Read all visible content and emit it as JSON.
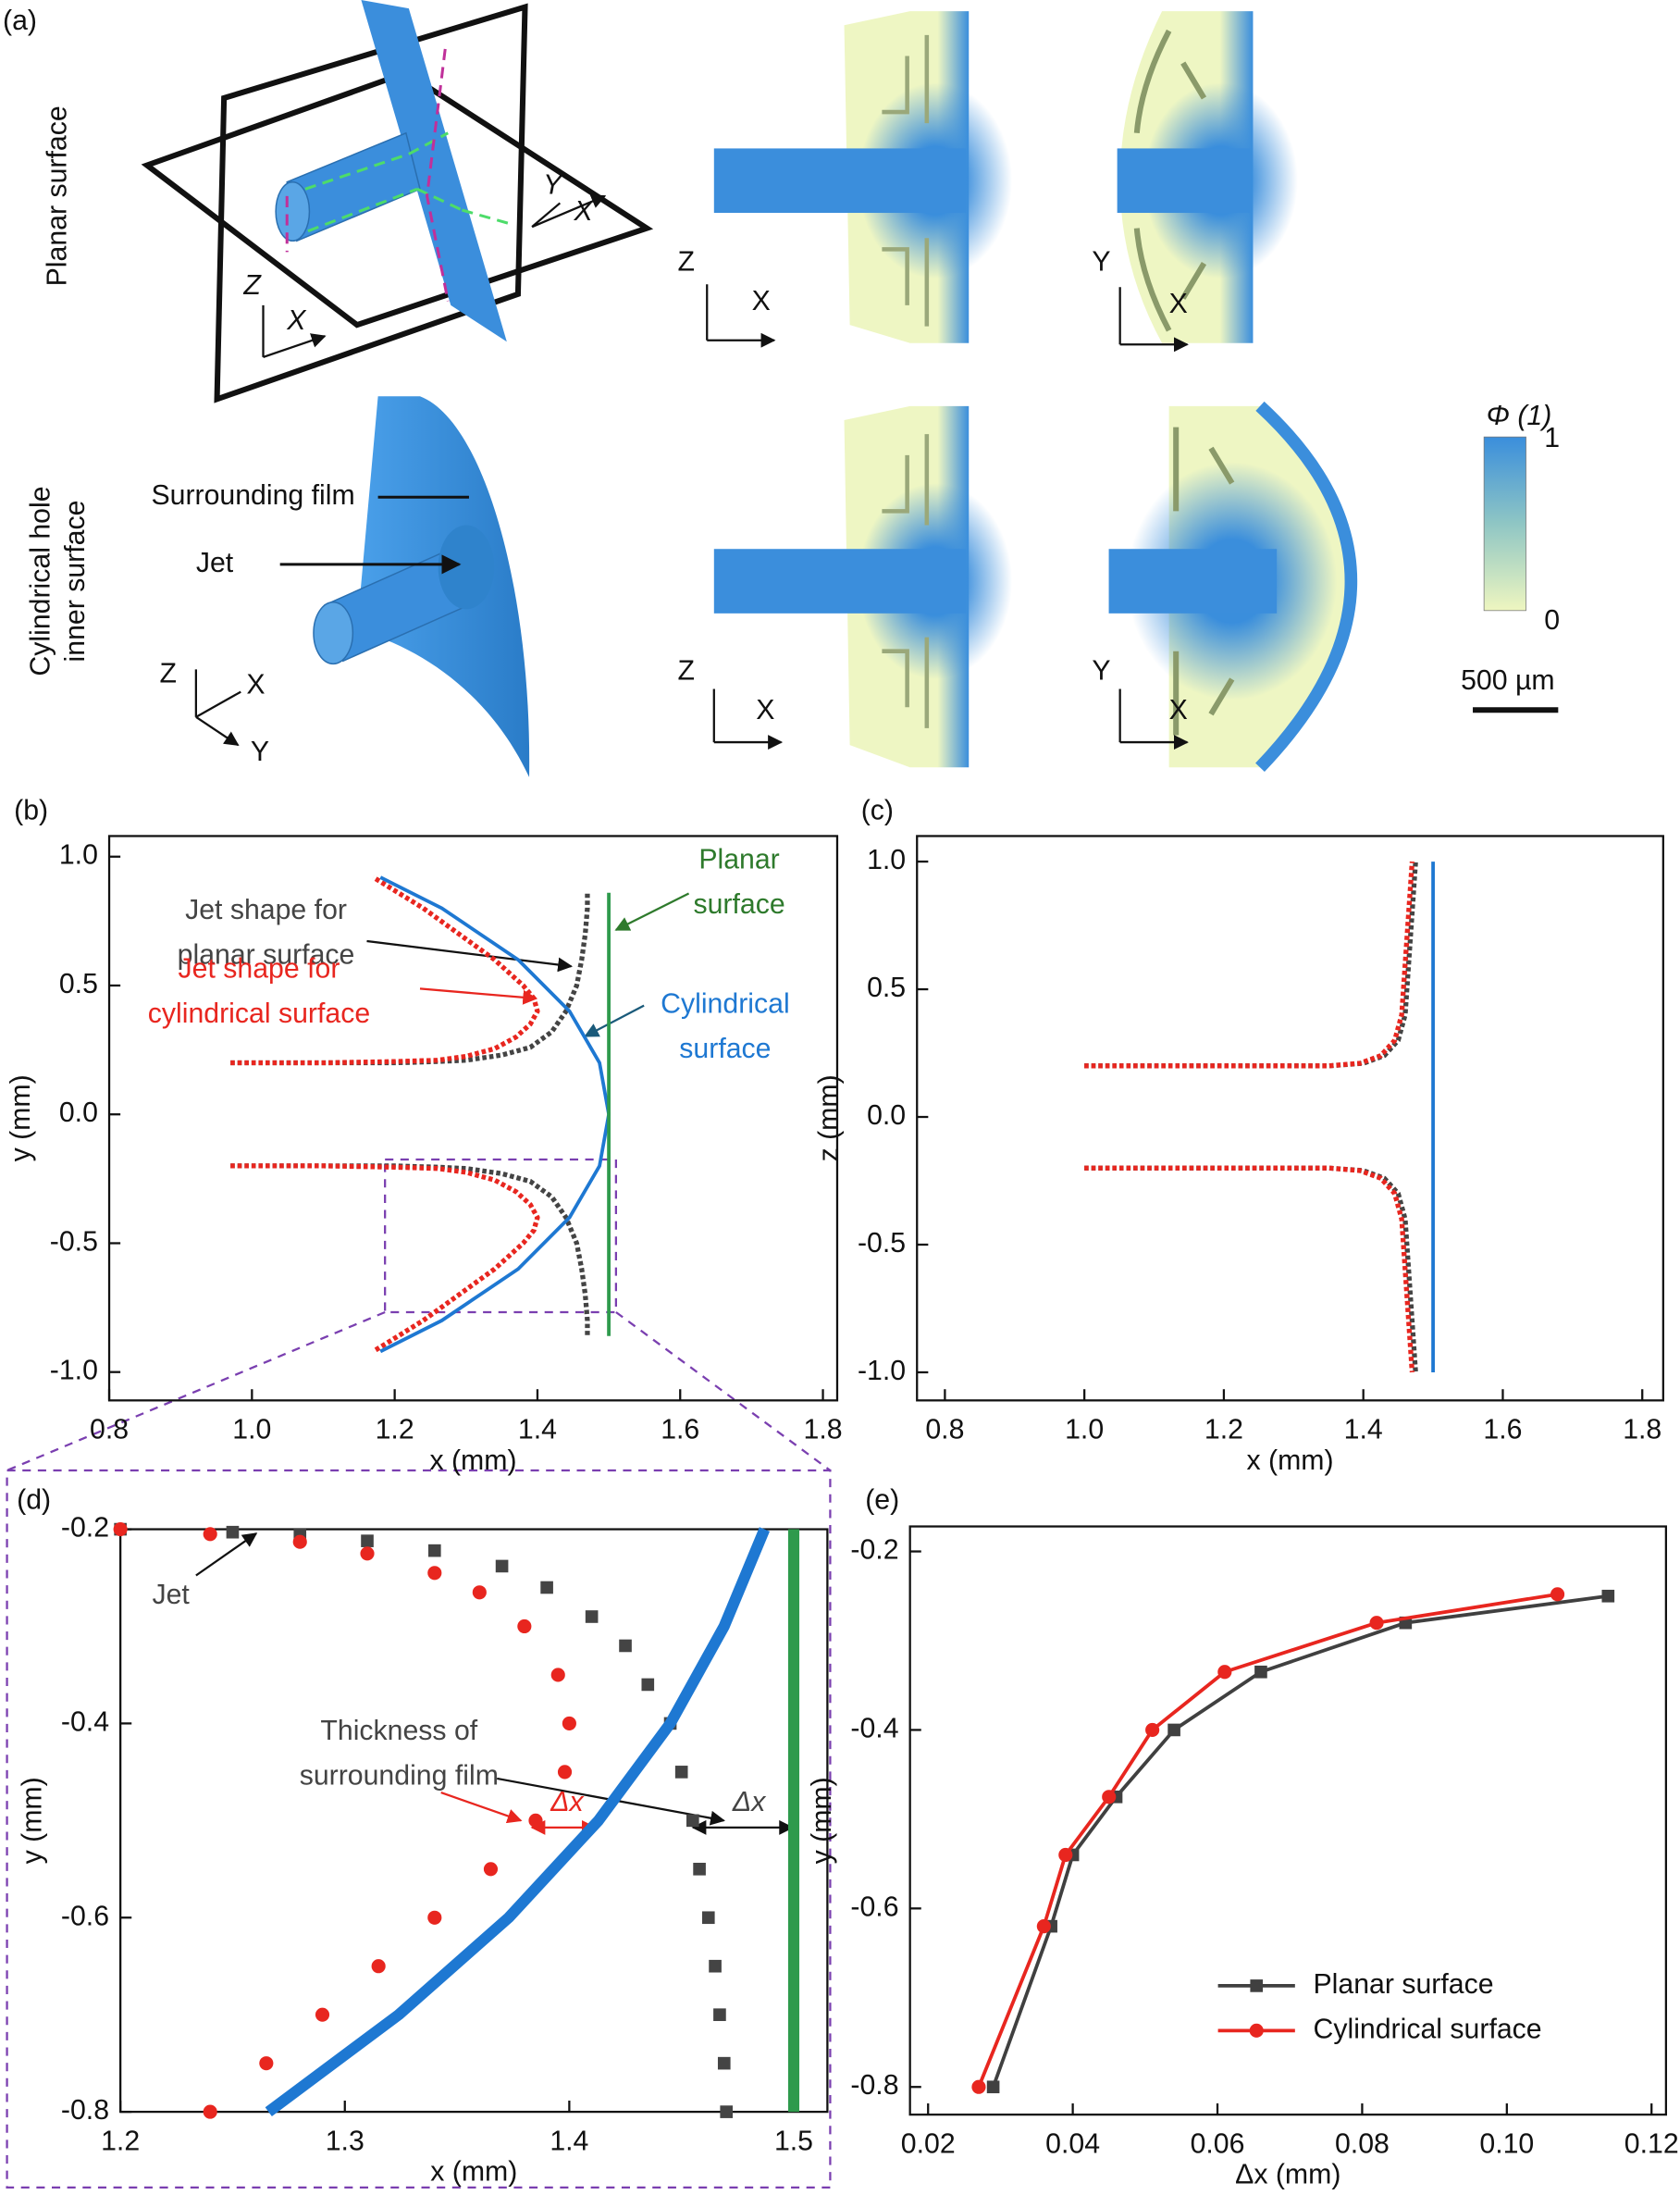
{
  "panel_a": {
    "label": "(a)",
    "rows": [
      [
        "Planar surface"
      ],
      [
        "Cylindrical hole",
        "inner surface"
      ]
    ],
    "annotations": [
      "Surrounding film",
      "Jet"
    ],
    "axes": [
      [
        "Z",
        "X",
        "Y",
        "X"
      ],
      [
        "Z",
        "X"
      ],
      [
        "Y",
        "X"
      ],
      [
        "Z",
        "X",
        "Y"
      ],
      [
        "Z",
        "X"
      ],
      [
        "Y",
        "X"
      ]
    ],
    "colorbar": {
      "title": "Φ (1)",
      "max": 1,
      "min": 0
    },
    "scale_bar": "500 µm"
  },
  "chart_data": [
    {
      "type": "line",
      "label": "(b)",
      "xlabel": "x (mm)",
      "ylabel": "y (mm)",
      "xlim": [
        0.8,
        1.82
      ],
      "ylim": [
        -1.11,
        1.08
      ],
      "xticks": [
        0.8,
        {
          "value": 1,
          "label": "1.0"
        },
        1.2,
        1.4,
        1.6,
        1.8
      ],
      "yticks": [
        {
          "value": -1,
          "label": "-1.0"
        },
        -0.5,
        {
          "value": 0,
          "label": "0.0"
        },
        0.5,
        {
          "value": 1,
          "label": "1.0"
        }
      ],
      "series": [
        {
          "color": "#444444",
          "linestyle": "dotted",
          "x": [
            0.97,
            1.1,
            1.2,
            1.26,
            1.3,
            1.35,
            1.39,
            1.42,
            1.44,
            1.455,
            1.462,
            1.467,
            1.47,
            1.47,
            null,
            0.97,
            1.1,
            1.2,
            1.26,
            1.3,
            1.35,
            1.39,
            1.42,
            1.44,
            1.455,
            1.462,
            1.467,
            1.47,
            1.47
          ],
          "values": [
            0.2,
            0.2,
            0.2,
            0.205,
            0.21,
            0.23,
            0.26,
            0.32,
            0.4,
            0.5,
            0.6,
            0.7,
            0.8,
            0.86,
            null,
            -0.2,
            -0.2,
            -0.2,
            -0.205,
            -0.21,
            -0.23,
            -0.26,
            -0.32,
            -0.4,
            -0.5,
            -0.6,
            -0.7,
            -0.8,
            -0.86
          ]
        },
        {
          "color": "#e8261f",
          "linestyle": "dotted",
          "x": [
            0.97,
            1.1,
            1.2,
            1.26,
            1.3,
            1.34,
            1.37,
            1.39,
            1.4,
            1.395,
            1.38,
            1.34,
            1.29,
            1.24,
            1.17,
            null,
            0.97,
            1.1,
            1.2,
            1.26,
            1.3,
            1.34,
            1.37,
            1.39,
            1.4,
            1.395,
            1.38,
            1.34,
            1.29,
            1.24,
            1.17
          ],
          "values": [
            0.2,
            0.2,
            0.205,
            0.21,
            0.225,
            0.255,
            0.3,
            0.35,
            0.4,
            0.45,
            0.5,
            0.6,
            0.7,
            0.8,
            0.92,
            null,
            -0.2,
            -0.2,
            -0.205,
            -0.21,
            -0.225,
            -0.255,
            -0.3,
            -0.35,
            -0.4,
            -0.45,
            -0.5,
            -0.6,
            -0.7,
            -0.8,
            -0.92
          ]
        },
        {
          "color": "#1e78d2",
          "linestyle": "solid",
          "x": [
            1.18,
            1.266,
            1.373,
            1.445,
            1.487,
            1.5,
            1.487,
            1.445,
            1.373,
            1.266,
            1.18
          ],
          "values": [
            0.92,
            0.8,
            0.6,
            0.4,
            0.2,
            0,
            -0.2,
            -0.4,
            -0.6,
            -0.8,
            -0.92
          ]
        },
        {
          "color": "#2e9a4c",
          "linestyle": "solid",
          "x": [
            1.5,
            1.5
          ],
          "values": [
            0.86,
            -0.86
          ]
        }
      ],
      "annotations": [
        [
          "Jet shape for",
          "planar surface"
        ],
        [
          "Jet shape for",
          "cylindrical surface"
        ],
        [
          "Planar",
          "surface"
        ],
        [
          "Cylindrical",
          "surface"
        ]
      ]
    },
    {
      "type": "line",
      "label": "(c)",
      "xlabel": "x (mm)",
      "ylabel": "z (mm)",
      "xlim": [
        0.76,
        1.83
      ],
      "ylim": [
        -1.11,
        1.1
      ],
      "xticks": [
        0.8,
        {
          "value": 1,
          "label": "1.0"
        },
        1.2,
        1.4,
        1.6,
        1.8
      ],
      "yticks": [
        {
          "value": -1,
          "label": "-1.0"
        },
        -0.5,
        {
          "value": 0,
          "label": "0.0"
        },
        0.5,
        {
          "value": 1,
          "label": "1.0"
        }
      ],
      "series": [
        {
          "color": "#444444",
          "linestyle": "dotted",
          "x": [
            1.0,
            1.2,
            1.35,
            1.4,
            1.43,
            1.45,
            1.46,
            1.465,
            1.47,
            1.475,
            null,
            1.0,
            1.2,
            1.35,
            1.4,
            1.43,
            1.45,
            1.46,
            1.465,
            1.47,
            1.475
          ],
          "values": [
            0.2,
            0.2,
            0.2,
            0.21,
            0.24,
            0.3,
            0.4,
            0.6,
            0.8,
            1.0,
            null,
            -0.2,
            -0.2,
            -0.2,
            -0.21,
            -0.24,
            -0.3,
            -0.4,
            -0.6,
            -0.8,
            -1.0
          ]
        },
        {
          "color": "#e8261f",
          "linestyle": "dotted",
          "x": [
            1.0,
            1.2,
            1.35,
            1.395,
            1.425,
            1.445,
            1.455,
            1.46,
            1.465,
            1.47,
            null,
            1.0,
            1.2,
            1.35,
            1.395,
            1.425,
            1.445,
            1.455,
            1.46,
            1.465,
            1.47
          ],
          "values": [
            0.2,
            0.2,
            0.2,
            0.21,
            0.24,
            0.3,
            0.4,
            0.6,
            0.8,
            1.0,
            null,
            -0.2,
            -0.2,
            -0.2,
            -0.21,
            -0.24,
            -0.3,
            -0.4,
            -0.6,
            -0.8,
            -1.0
          ]
        },
        {
          "color": "#1e78d2",
          "linestyle": "solid",
          "x": [
            1.5,
            1.5
          ],
          "values": [
            1.0,
            -1.0
          ]
        }
      ]
    },
    {
      "type": "scatter",
      "label": "(d)",
      "xlabel": "x (mm)",
      "ylabel": "y (mm)",
      "xlim": [
        1.2,
        1.515
      ],
      "ylim": [
        -0.8,
        -0.2
      ],
      "xticks": [
        1.2,
        1.3,
        1.4,
        1.5
      ],
      "yticks": [
        -0.2,
        -0.4,
        -0.6,
        -0.8
      ],
      "series": [
        {
          "color": "#444444",
          "marker": "square",
          "x": [
            1.2,
            1.25,
            1.28,
            1.31,
            1.34,
            1.37,
            1.39,
            1.41,
            1.425,
            1.435,
            1.445,
            1.45,
            1.455,
            1.458,
            1.462,
            1.465,
            1.467,
            1.469,
            1.47
          ],
          "values": [
            -0.2,
            -0.203,
            -0.206,
            -0.212,
            -0.222,
            -0.238,
            -0.26,
            -0.29,
            -0.32,
            -0.36,
            -0.4,
            -0.45,
            -0.5,
            -0.55,
            -0.6,
            -0.65,
            -0.7,
            -0.75,
            -0.8
          ]
        },
        {
          "color": "#e8261f",
          "marker": "circle",
          "x": [
            1.2,
            1.24,
            1.28,
            1.31,
            1.34,
            1.36,
            1.38,
            1.395,
            1.4,
            1.398,
            1.385,
            1.365,
            1.34,
            1.315,
            1.29,
            1.265,
            1.24
          ],
          "values": [
            -0.2,
            -0.205,
            -0.213,
            -0.225,
            -0.245,
            -0.265,
            -0.3,
            -0.35,
            -0.4,
            -0.45,
            -0.5,
            -0.55,
            -0.6,
            -0.65,
            -0.7,
            -0.75,
            -0.8
          ]
        },
        {
          "color": "#1e78d2",
          "linestyle": "thick",
          "x": [
            1.487,
            1.469,
            1.445,
            1.413,
            1.373,
            1.324,
            1.266
          ],
          "values": [
            -0.2,
            -0.3,
            -0.4,
            -0.5,
            -0.6,
            -0.7,
            -0.8
          ]
        },
        {
          "color": "#2e9a4c",
          "linestyle": "thick",
          "x": [
            1.5,
            1.5
          ],
          "values": [
            -0.2,
            -0.8
          ]
        }
      ],
      "annotations": [
        [
          "Jet"
        ],
        [
          "Thickness of",
          "surrounding film"
        ],
        [
          "Δx"
        ],
        [
          "Δx"
        ]
      ]
    },
    {
      "type": "line",
      "label": "(e)",
      "xlabel": "Δx (mm)",
      "ylabel": "y (mm)",
      "xlim": [
        0.0175,
        0.122
      ],
      "ylim": [
        -0.831,
        -0.172
      ],
      "xticks": [
        0.02,
        0.04,
        0.06,
        0.08,
        {
          "value": 0.1,
          "label": "0.10"
        },
        0.12
      ],
      "yticks": [
        -0.2,
        -0.4,
        -0.6,
        -0.8
      ],
      "legend": "lower right",
      "series": [
        {
          "name": "Planar surface",
          "color": "#404040",
          "linestyle": "solid",
          "marker": "square",
          "x": [
            0.029,
            0.037,
            0.04,
            0.046,
            0.054,
            0.066,
            0.086,
            0.114
          ],
          "values": [
            -0.8,
            -0.62,
            -0.54,
            -0.475,
            -0.4,
            -0.335,
            -0.28,
            -0.25
          ]
        },
        {
          "name": "Cylindrical surface",
          "color": "#e8261f",
          "linestyle": "solid",
          "marker": "circle",
          "x": [
            0.027,
            0.036,
            0.039,
            0.045,
            0.051,
            0.061,
            0.082,
            0.107
          ],
          "values": [
            -0.8,
            -0.62,
            -0.54,
            -0.475,
            -0.4,
            -0.335,
            -0.28,
            -0.248
          ]
        }
      ]
    }
  ]
}
